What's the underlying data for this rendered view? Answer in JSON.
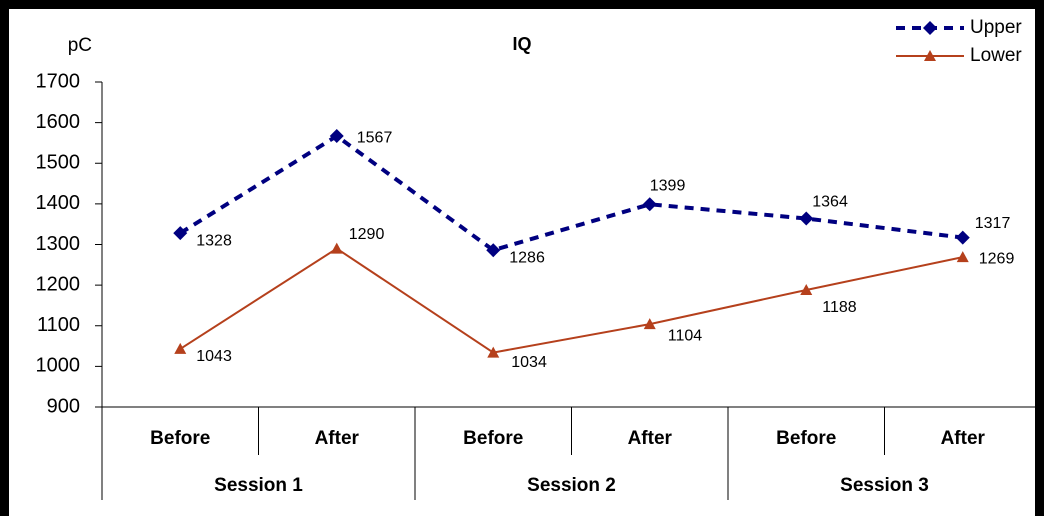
{
  "chart_data": {
    "type": "line",
    "title": "IQ",
    "y_label": "pC",
    "categories": [
      "Before",
      "After",
      "Before",
      "After",
      "Before",
      "After"
    ],
    "groups": [
      "Session 1",
      "Session 2",
      "Session 3"
    ],
    "series": [
      {
        "name": "Upper",
        "color": "#000080",
        "dashed": true,
        "marker": "diamond",
        "values": [
          1328,
          1567,
          1286,
          1399,
          1364,
          1317
        ]
      },
      {
        "name": "Lower",
        "color": "#b5401c",
        "dashed": false,
        "marker": "triangle",
        "values": [
          1043,
          1290,
          1034,
          1104,
          1188,
          1269
        ]
      }
    ],
    "ylim": [
      900,
      1700
    ],
    "yticks": [
      900,
      1000,
      1100,
      1200,
      1300,
      1400,
      1500,
      1600,
      1700
    ],
    "grid": false,
    "legend": "top-right"
  }
}
